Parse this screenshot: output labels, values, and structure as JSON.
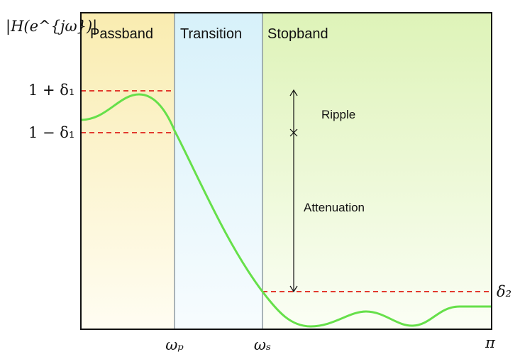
{
  "y_label": "|H(e^{jω})|",
  "regions": {
    "passband": "Passband",
    "transition": "Transition",
    "stopband": "Stopband"
  },
  "levels": {
    "upper": "1 + δ₁",
    "lower": "1 − δ₁",
    "stop": "δ₂"
  },
  "x_ticks": {
    "wp": "ωₚ",
    "ws": "ωₛ",
    "pi": "π"
  },
  "annotations": {
    "ripple": "Ripple",
    "attenuation": "Attenuation"
  },
  "colors": {
    "passband_fill": "#fbf2c4",
    "transition_fill": "#e3f6fb",
    "stopband_fill": "#e7f5c9",
    "response_curve": "#66e04a",
    "tolerance_lines": "#e23a2e",
    "frame": "#111111"
  }
}
